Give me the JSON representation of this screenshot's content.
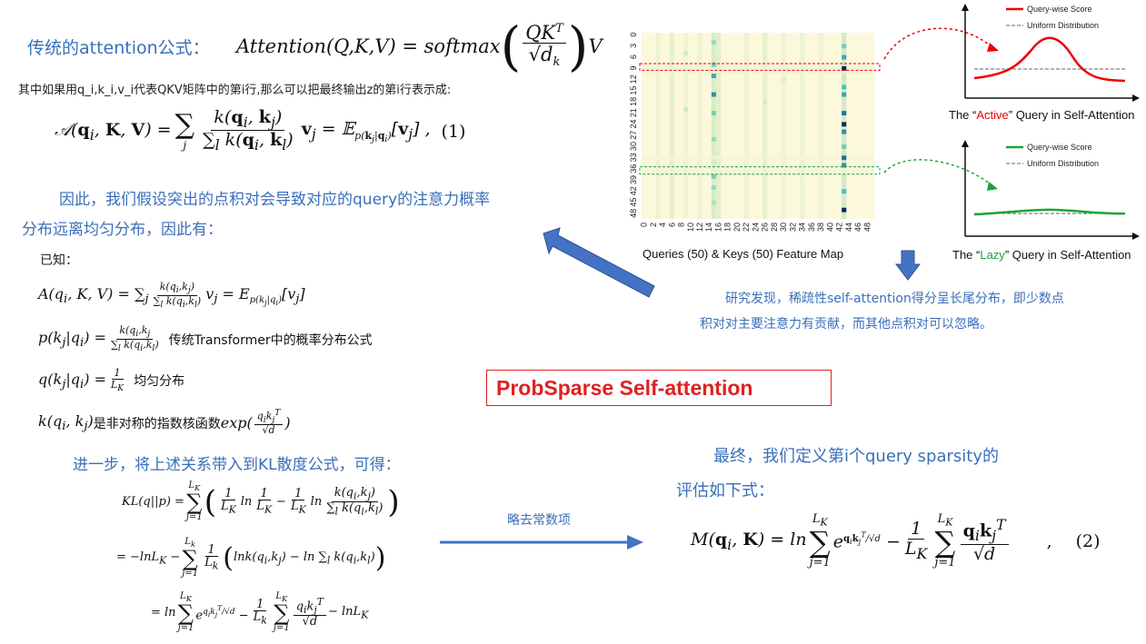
{
  "left": {
    "title_label": "传统的attention公式：",
    "title_formula": "Attention(Q,K,V) = softmax(QK^T/√d_k)V",
    "desc": "其中如果用q_i,k_i,v_i代表QKV矩阵中的第i行,那么可以把最终输出z的第i行表示成:",
    "eq1_number": "(1)",
    "hyp_line1": "因此，我们假设突出的点积对会导致对应的query的注意力概率",
    "hyp_line2": "分布远离均匀分布，因此有：",
    "known": "已知：",
    "p_label": "传统Transformer中的概率分布公式",
    "q_label": "均匀分布",
    "k_label": "是非对称的指数核函数",
    "further": "进一步，将上述关系带入到KL散度公式，可得："
  },
  "center": {
    "title": "ProbSparse Self-attention",
    "drop_label": "略去常数项"
  },
  "right": {
    "finding_line1": "研究发现，稀疏性self-attention得分呈长尾分布，即少数点",
    "finding_line2": "积对对主要注意力有贡献，而其他点积对可以忽略。",
    "final_line1": "最终，我们定义第i个query sparsity的",
    "final_line2": "评估如下式：",
    "eq2_number": "(2)"
  },
  "heatmap": {
    "xlabel": "Queries (50) & Keys (50) Feature Map",
    "yticks": [
      "0",
      "3",
      "6",
      "9",
      "12",
      "15",
      "18",
      "21",
      "24",
      "27",
      "30",
      "33",
      "36",
      "39",
      "42",
      "45",
      "48"
    ],
    "xticks": [
      "0",
      "2",
      "4",
      "6",
      "8",
      "10",
      "12",
      "14",
      "16",
      "18",
      "20",
      "22",
      "24",
      "26",
      "28",
      "30",
      "32",
      "34",
      "36",
      "38",
      "40",
      "42",
      "44",
      "46",
      "48"
    ]
  },
  "active_chart": {
    "legend_score": "Query-wise Score",
    "legend_uniform": "Uniform Distribution",
    "caption_pre": "The “",
    "caption_word": "Active",
    "caption_post": "” Query in Self-Attention",
    "color": "#ee0000"
  },
  "lazy_chart": {
    "legend_score": "Query-wise Score",
    "legend_uniform": "Uniform Distribution",
    "caption_pre": "The “",
    "caption_word": "Lazy",
    "caption_post": "” Query in Self-Attention",
    "color": "#1aa33a"
  }
}
